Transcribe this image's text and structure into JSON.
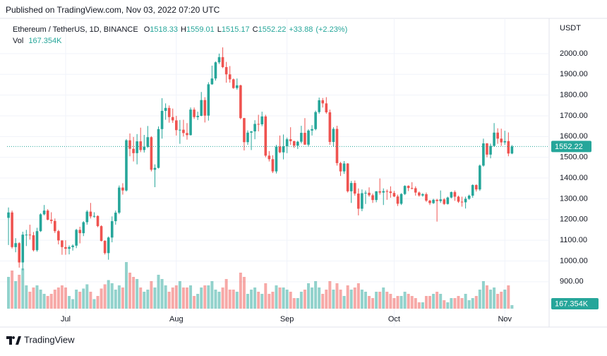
{
  "header": "Published on TradingView.com, Nov 03, 2022 07:20 UTC",
  "footer": "TradingView",
  "chart_data": {
    "type": "candlestick",
    "symbol": "Ethereum / TetherUS, 1D, BINANCE",
    "ohlc_legend": [
      {
        "key": "O",
        "value": 1518.33
      },
      {
        "key": "H",
        "value": 1559.01
      },
      {
        "key": "L",
        "value": 1515.17
      },
      {
        "key": "C",
        "value": 1552.22
      }
    ],
    "change": {
      "value": 33.88,
      "label": "+33.88"
    },
    "change_pct": {
      "value": 2.23,
      "label": "(+2.23%)"
    },
    "volume_legend": {
      "key": "Vol",
      "value": 167.354,
      "label": "167.354K"
    },
    "currency": "USDT",
    "up_color": "#26a69a",
    "down_color": "#ef5350",
    "grid": true,
    "xlim": [
      -0.4,
      151.4
    ],
    "xticks": [
      {
        "value": 16,
        "label": "Jul"
      },
      {
        "value": 47,
        "label": "Aug"
      },
      {
        "value": 78,
        "label": "Sep"
      },
      {
        "value": 108,
        "label": "Oct"
      },
      {
        "value": 139,
        "label": "Nov"
      }
    ],
    "ylim": [
      770,
      2170
    ],
    "yticks": [
      {
        "value": 900,
        "label": "900.00"
      },
      {
        "value": 1000,
        "label": "1000.00"
      },
      {
        "value": 1100,
        "label": "1100.00"
      },
      {
        "value": 1200,
        "label": "1200.00"
      },
      {
        "value": 1300,
        "label": "1300.00"
      },
      {
        "value": 1400,
        "label": "1400.00"
      },
      {
        "value": 1500,
        "label": "1500.00"
      },
      {
        "value": 1600,
        "label": "1600.00"
      },
      {
        "value": 1700,
        "label": "1700.00"
      },
      {
        "value": 1800,
        "label": "1800.00"
      },
      {
        "value": 1900,
        "label": "1900.00"
      },
      {
        "value": 2000,
        "label": "2000.00"
      }
    ],
    "volume_lim": [
      0,
      2400
    ],
    "candles": [
      [
        1208,
        1258,
        1077,
        1234
      ],
      [
        1234,
        1243,
        1060,
        1067
      ],
      [
        1067,
        1110,
        1042,
        1086
      ],
      [
        1086,
        1091,
        968,
        993
      ],
      [
        993,
        1141,
        955,
        1127
      ],
      [
        1127,
        1150,
        1072,
        1127
      ],
      [
        1127,
        1175,
        1103,
        1124
      ],
      [
        1124,
        1140,
        1046,
        1052
      ],
      [
        1052,
        1160,
        1045,
        1144
      ],
      [
        1144,
        1230,
        1140,
        1225
      ],
      [
        1225,
        1270,
        1220,
        1243
      ],
      [
        1243,
        1250,
        1196,
        1199
      ],
      [
        1199,
        1235,
        1180,
        1193
      ],
      [
        1193,
        1205,
        1135,
        1144
      ],
      [
        1144,
        1150,
        1080,
        1099
      ],
      [
        1099,
        1100,
        1030,
        1067
      ],
      [
        1067,
        1100,
        1030,
        1059
      ],
      [
        1059,
        1075,
        1032,
        1067
      ],
      [
        1067,
        1080,
        1050,
        1074
      ],
      [
        1074,
        1155,
        1062,
        1150
      ],
      [
        1150,
        1165,
        1085,
        1134
      ],
      [
        1134,
        1192,
        1120,
        1187
      ],
      [
        1187,
        1245,
        1175,
        1238
      ],
      [
        1238,
        1280,
        1205,
        1215
      ],
      [
        1215,
        1235,
        1208,
        1217
      ],
      [
        1217,
        1220,
        1163,
        1168
      ],
      [
        1168,
        1172,
        1094,
        1097
      ],
      [
        1097,
        1100,
        1031,
        1038
      ],
      [
        1038,
        1118,
        1006,
        1113
      ],
      [
        1113,
        1215,
        1090,
        1192
      ],
      [
        1192,
        1243,
        1175,
        1233
      ],
      [
        1233,
        1364,
        1226,
        1354
      ],
      [
        1354,
        1375,
        1320,
        1340
      ],
      [
        1340,
        1588,
        1335,
        1582
      ],
      [
        1582,
        1615,
        1505,
        1541
      ],
      [
        1541,
        1598,
        1480,
        1520
      ],
      [
        1520,
        1612,
        1466,
        1577
      ],
      [
        1577,
        1643,
        1525,
        1535
      ],
      [
        1535,
        1608,
        1523,
        1550
      ],
      [
        1550,
        1651,
        1545,
        1597
      ],
      [
        1597,
        1602,
        1432,
        1440
      ],
      [
        1440,
        1466,
        1356,
        1449
      ],
      [
        1449,
        1649,
        1446,
        1636
      ],
      [
        1636,
        1785,
        1590,
        1724
      ],
      [
        1724,
        1760,
        1681,
        1738
      ],
      [
        1738,
        1750,
        1667,
        1694
      ],
      [
        1694,
        1735,
        1666,
        1678
      ],
      [
        1678,
        1700,
        1605,
        1631
      ],
      [
        1631,
        1680,
        1565,
        1633
      ],
      [
        1633,
        1681,
        1600,
        1617
      ],
      [
        1617,
        1665,
        1585,
        1607
      ],
      [
        1607,
        1740,
        1605,
        1730
      ],
      [
        1730,
        1740,
        1685,
        1694
      ],
      [
        1694,
        1720,
        1680,
        1700
      ],
      [
        1700,
        1815,
        1698,
        1776
      ],
      [
        1776,
        1790,
        1668,
        1701
      ],
      [
        1701,
        1862,
        1677,
        1852
      ],
      [
        1852,
        1942,
        1850,
        1880
      ],
      [
        1880,
        1962,
        1870,
        1958
      ],
      [
        1958,
        2000,
        1950,
        1983
      ],
      [
        1983,
        2030,
        1930,
        1935
      ],
      [
        1935,
        1960,
        1860,
        1900
      ],
      [
        1900,
        1940,
        1860,
        1876
      ],
      [
        1876,
        1880,
        1830,
        1834
      ],
      [
        1834,
        1880,
        1826,
        1847
      ],
      [
        1847,
        1850,
        1683,
        1689
      ],
      [
        1689,
        1690,
        1533,
        1573
      ],
      [
        1573,
        1630,
        1560,
        1619
      ],
      [
        1619,
        1627,
        1535,
        1625
      ],
      [
        1625,
        1679,
        1587,
        1661
      ],
      [
        1661,
        1705,
        1625,
        1659
      ],
      [
        1659,
        1720,
        1650,
        1697
      ],
      [
        1697,
        1705,
        1500,
        1508
      ],
      [
        1508,
        1530,
        1480,
        1491
      ],
      [
        1491,
        1510,
        1424,
        1432
      ],
      [
        1432,
        1560,
        1422,
        1552
      ],
      [
        1552,
        1605,
        1520,
        1524
      ],
      [
        1524,
        1610,
        1490,
        1553
      ],
      [
        1553,
        1595,
        1520,
        1587
      ],
      [
        1587,
        1645,
        1560,
        1578
      ],
      [
        1578,
        1580,
        1545,
        1556
      ],
      [
        1556,
        1580,
        1540,
        1575
      ],
      [
        1575,
        1652,
        1567,
        1618
      ],
      [
        1618,
        1689,
        1560,
        1561
      ],
      [
        1561,
        1635,
        1553,
        1629
      ],
      [
        1629,
        1655,
        1605,
        1636
      ],
      [
        1636,
        1725,
        1630,
        1718
      ],
      [
        1718,
        1788,
        1710,
        1775
      ],
      [
        1775,
        1786,
        1740,
        1760
      ],
      [
        1760,
        1790,
        1710,
        1717
      ],
      [
        1717,
        1730,
        1560,
        1574
      ],
      [
        1574,
        1645,
        1550,
        1637
      ],
      [
        1637,
        1652,
        1460,
        1472
      ],
      [
        1472,
        1478,
        1410,
        1432
      ],
      [
        1432,
        1482,
        1420,
        1470
      ],
      [
        1470,
        1472,
        1330,
        1336
      ],
      [
        1336,
        1386,
        1280,
        1376
      ],
      [
        1376,
        1388,
        1315,
        1325
      ],
      [
        1325,
        1350,
        1220,
        1252
      ],
      [
        1252,
        1345,
        1240,
        1327
      ],
      [
        1327,
        1340,
        1275,
        1329
      ],
      [
        1329,
        1355,
        1310,
        1317
      ],
      [
        1317,
        1325,
        1280,
        1294
      ],
      [
        1294,
        1337,
        1283,
        1336
      ],
      [
        1336,
        1398,
        1320,
        1330
      ],
      [
        1330,
        1350,
        1270,
        1337
      ],
      [
        1337,
        1345,
        1295,
        1335
      ],
      [
        1335,
        1360,
        1305,
        1328
      ],
      [
        1328,
        1338,
        1308,
        1311
      ],
      [
        1311,
        1320,
        1265,
        1276
      ],
      [
        1276,
        1327,
        1270,
        1323
      ],
      [
        1323,
        1365,
        1318,
        1362
      ],
      [
        1362,
        1365,
        1337,
        1352
      ],
      [
        1352,
        1380,
        1345,
        1351
      ],
      [
        1351,
        1360,
        1315,
        1330
      ],
      [
        1330,
        1335,
        1310,
        1316
      ],
      [
        1316,
        1327,
        1310,
        1322
      ],
      [
        1322,
        1330,
        1285,
        1291
      ],
      [
        1291,
        1295,
        1270,
        1279
      ],
      [
        1279,
        1300,
        1275,
        1295
      ],
      [
        1295,
        1300,
        1190,
        1289
      ],
      [
        1289,
        1340,
        1280,
        1297
      ],
      [
        1297,
        1303,
        1270,
        1275
      ],
      [
        1275,
        1310,
        1272,
        1306
      ],
      [
        1306,
        1335,
        1302,
        1332
      ],
      [
        1332,
        1340,
        1290,
        1310
      ],
      [
        1310,
        1315,
        1280,
        1286
      ],
      [
        1286,
        1310,
        1262,
        1283
      ],
      [
        1283,
        1310,
        1253,
        1300
      ],
      [
        1300,
        1320,
        1295,
        1315
      ],
      [
        1315,
        1370,
        1305,
        1366
      ],
      [
        1366,
        1370,
        1335,
        1345
      ],
      [
        1345,
        1465,
        1338,
        1460
      ],
      [
        1460,
        1590,
        1455,
        1567
      ],
      [
        1567,
        1569,
        1500,
        1513
      ],
      [
        1513,
        1566,
        1495,
        1555
      ],
      [
        1555,
        1665,
        1550,
        1619
      ],
      [
        1619,
        1640,
        1565,
        1590
      ],
      [
        1590,
        1638,
        1555,
        1572
      ],
      [
        1572,
        1628,
        1560,
        1578
      ],
      [
        1578,
        1620,
        1505,
        1518.33
      ],
      [
        1518.33,
        1559.01,
        1515.17,
        1552.22
      ]
    ],
    "volumes": [
      1500,
      1800,
      1300,
      1600,
      1900,
      1100,
      800,
      1000,
      1100,
      900,
      700,
      600,
      700,
      900,
      1000,
      1100,
      1000,
      600,
      450,
      900,
      800,
      950,
      1150,
      800,
      450,
      600,
      950,
      1150,
      1350,
      1200,
      900,
      1100,
      1000,
      2200,
      1700,
      1500,
      1400,
      1000,
      800,
      900,
      1300,
      1000,
      1600,
      1400,
      1100,
      800,
      1000,
      1100,
      1300,
      1000,
      1000,
      1100,
      600,
      700,
      1000,
      1100,
      1100,
      1300,
      900,
      800,
      1000,
      1400,
      900,
      900,
      800,
      1700,
      1500,
      700,
      900,
      1000,
      800,
      700,
      1200,
      700,
      800,
      1100,
      1000,
      1000,
      900,
      800,
      500,
      500,
      800,
      900,
      1200,
      1000,
      1300,
      1000,
      700,
      900,
      1300,
      900,
      1200,
      900,
      600,
      1100,
      900,
      1000,
      1200,
      900,
      800,
      600,
      500,
      800,
      800,
      1000,
      800,
      700,
      500,
      600,
      600,
      800,
      700,
      600,
      500,
      300,
      300,
      600,
      600,
      700,
      800,
      700,
      400,
      300,
      500,
      500,
      600,
      500,
      700,
      400,
      500,
      600,
      900,
      1300,
      1100,
      900,
      1000,
      700,
      800,
      900,
      1100,
      167.354
    ]
  }
}
